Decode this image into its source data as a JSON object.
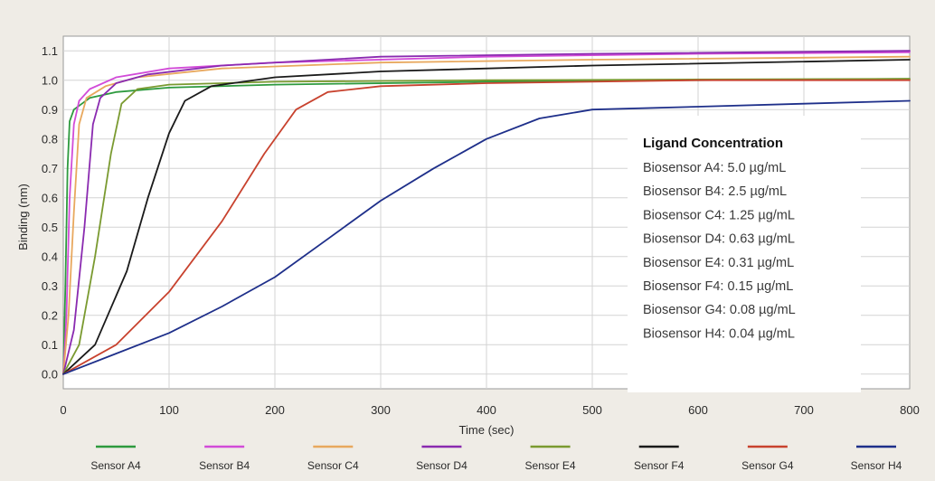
{
  "chart_data": {
    "type": "line",
    "xlabel": "Time (sec)",
    "ylabel": "Binding (nm)",
    "xlim": [
      0,
      800
    ],
    "ylim": [
      -0.05,
      1.15
    ],
    "x_ticks": [
      "0",
      "100",
      "200",
      "300",
      "400",
      "500",
      "600",
      "700",
      "800"
    ],
    "y_ticks": [
      "0.0",
      "0.1",
      "0.2",
      "0.3",
      "0.4",
      "0.5",
      "0.6",
      "0.7",
      "0.8",
      "0.9",
      "1.0",
      "1.1"
    ],
    "grid": true,
    "legend_position": "bottom",
    "series": [
      {
        "name": "Sensor A4",
        "color": "#2e9a3e",
        "points": [
          [
            0,
            0
          ],
          [
            2,
            0.3
          ],
          [
            4,
            0.7
          ],
          [
            6,
            0.86
          ],
          [
            10,
            0.9
          ],
          [
            25,
            0.94
          ],
          [
            50,
            0.96
          ],
          [
            100,
            0.975
          ],
          [
            200,
            0.985
          ],
          [
            400,
            0.995
          ],
          [
            600,
            1.0
          ],
          [
            800,
            1.005
          ]
        ]
      },
      {
        "name": "Sensor B4",
        "color": "#d24bd8",
        "points": [
          [
            0,
            0
          ],
          [
            3,
            0.2
          ],
          [
            6,
            0.6
          ],
          [
            10,
            0.85
          ],
          [
            15,
            0.93
          ],
          [
            25,
            0.97
          ],
          [
            50,
            1.01
          ],
          [
            100,
            1.04
          ],
          [
            200,
            1.06
          ],
          [
            400,
            1.08
          ],
          [
            600,
            1.09
          ],
          [
            800,
            1.095
          ]
        ]
      },
      {
        "name": "Sensor C4",
        "color": "#e8a85e",
        "points": [
          [
            0,
            0
          ],
          [
            5,
            0.2
          ],
          [
            10,
            0.55
          ],
          [
            15,
            0.85
          ],
          [
            22,
            0.94
          ],
          [
            40,
            0.98
          ],
          [
            70,
            1.01
          ],
          [
            150,
            1.04
          ],
          [
            300,
            1.06
          ],
          [
            500,
            1.07
          ],
          [
            800,
            1.08
          ]
        ]
      },
      {
        "name": "Sensor D4",
        "color": "#8a2ab0",
        "points": [
          [
            0,
            0
          ],
          [
            10,
            0.15
          ],
          [
            20,
            0.5
          ],
          [
            28,
            0.85
          ],
          [
            35,
            0.94
          ],
          [
            50,
            0.99
          ],
          [
            80,
            1.02
          ],
          [
            150,
            1.05
          ],
          [
            300,
            1.08
          ],
          [
            500,
            1.09
          ],
          [
            800,
            1.1
          ]
        ]
      },
      {
        "name": "Sensor E4",
        "color": "#7a9a30",
        "points": [
          [
            0,
            0
          ],
          [
            15,
            0.1
          ],
          [
            30,
            0.4
          ],
          [
            45,
            0.75
          ],
          [
            55,
            0.92
          ],
          [
            70,
            0.97
          ],
          [
            100,
            0.985
          ],
          [
            200,
            0.995
          ],
          [
            400,
            1.0
          ],
          [
            800,
            1.005
          ]
        ]
      },
      {
        "name": "Sensor F4",
        "color": "#1a1a1a",
        "points": [
          [
            0,
            0
          ],
          [
            30,
            0.1
          ],
          [
            60,
            0.35
          ],
          [
            80,
            0.6
          ],
          [
            100,
            0.82
          ],
          [
            115,
            0.93
          ],
          [
            140,
            0.98
          ],
          [
            200,
            1.01
          ],
          [
            300,
            1.03
          ],
          [
            500,
            1.05
          ],
          [
            800,
            1.07
          ]
        ]
      },
      {
        "name": "Sensor G4",
        "color": "#c8422e",
        "points": [
          [
            0,
            0
          ],
          [
            50,
            0.1
          ],
          [
            100,
            0.28
          ],
          [
            150,
            0.52
          ],
          [
            190,
            0.75
          ],
          [
            220,
            0.9
          ],
          [
            250,
            0.96
          ],
          [
            300,
            0.98
          ],
          [
            400,
            0.99
          ],
          [
            600,
            1.0
          ],
          [
            800,
            1.0
          ]
        ]
      },
      {
        "name": "Sensor H4",
        "color": "#1e2f8a",
        "points": [
          [
            0,
            0
          ],
          [
            100,
            0.14
          ],
          [
            150,
            0.23
          ],
          [
            200,
            0.33
          ],
          [
            250,
            0.46
          ],
          [
            300,
            0.59
          ],
          [
            350,
            0.7
          ],
          [
            400,
            0.8
          ],
          [
            450,
            0.87
          ],
          [
            500,
            0.9
          ],
          [
            600,
            0.91
          ],
          [
            700,
            0.92
          ],
          [
            800,
            0.93
          ]
        ]
      }
    ]
  },
  "annotation": {
    "title": "Ligand Concentration",
    "lines": [
      "Biosensor A4: 5.0 µg/mL",
      "Biosensor B4: 2.5 µg/mL",
      "Biosensor C4: 1.25 µg/mL",
      "Biosensor D4: 0.63 µg/mL",
      "Biosensor E4: 0.31 µg/mL",
      "Biosensor F4: 0.15 µg/mL",
      "Biosensor G4: 0.08 µg/mL",
      "Biosensor H4: 0.04 µg/mL"
    ]
  },
  "colors": {
    "plot_background": "#ffffff",
    "page_background": "#efece6",
    "grid": "#d3d3d3"
  }
}
